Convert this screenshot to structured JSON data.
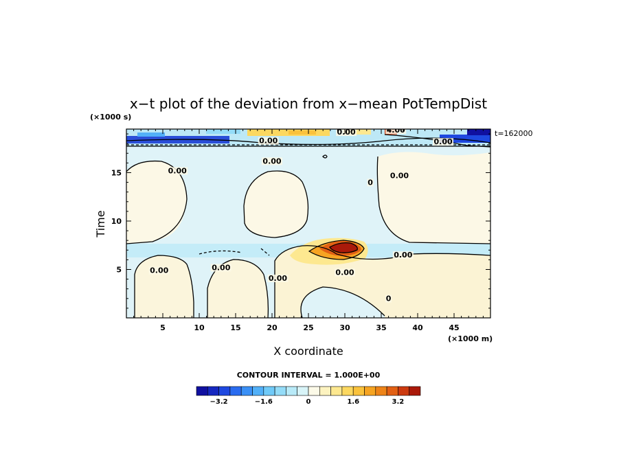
{
  "chart_data": {
    "type": "heatmap",
    "title": "x−t plot of the deviation from x−mean PotTempDist",
    "xlabel": "X coordinate",
    "ylabel": "Time",
    "x_unit": "(×1000 m)",
    "y_unit": "(×1000 s)",
    "time_stamp": "t=162000",
    "xlim": [
      0,
      50
    ],
    "ylim": [
      0,
      19.5
    ],
    "x_ticks": [
      5,
      10,
      15,
      20,
      25,
      30,
      35,
      40,
      45
    ],
    "x_tick_labels": [
      "5",
      "10",
      "15",
      "20",
      "25",
      "30",
      "35",
      "40",
      "45"
    ],
    "y_ticks": [
      5,
      10,
      15
    ],
    "y_tick_labels": [
      "5",
      "10",
      "15"
    ],
    "contour_interval_label": "CONTOUR INTERVAL = 1.000E+00",
    "contour_labels": [
      {
        "text": "0.00",
        "x": 7,
        "y": 15.0
      },
      {
        "text": "0.00",
        "x": 20.0,
        "y": 16.0
      },
      {
        "text": "0.00",
        "x": 37.5,
        "y": 14.5
      },
      {
        "text": "0",
        "x": 33.5,
        "y": 13.8
      },
      {
        "text": "0.00",
        "x": 19.5,
        "y": 18.1
      },
      {
        "text": "0.00",
        "x": 43.5,
        "y": 18.0
      },
      {
        "text": "0.00",
        "x": 30.2,
        "y": 19.0
      },
      {
        "text": "4.00",
        "x": 37.0,
        "y": 19.2
      },
      {
        "text": "0.00",
        "x": 4.5,
        "y": 4.7
      },
      {
        "text": "0.00",
        "x": 13.0,
        "y": 5.0
      },
      {
        "text": "0.00",
        "x": 20.8,
        "y": 3.9
      },
      {
        "text": "0.00",
        "x": 30.0,
        "y": 4.5
      },
      {
        "text": "0.00",
        "x": 38.0,
        "y": 6.3
      },
      {
        "text": "0",
        "x": 36.0,
        "y": 1.8
      }
    ],
    "colorbar": {
      "levels": [
        -4.0,
        -3.6,
        -3.2,
        -2.8,
        -2.4,
        -2.0,
        -1.6,
        -1.2,
        -0.8,
        -0.4,
        0,
        0.4,
        0.8,
        1.2,
        1.6,
        2.0,
        2.4,
        2.8,
        3.2,
        3.6,
        4.0
      ],
      "tick_values": [
        -3.2,
        -1.6,
        0,
        1.6,
        3.2
      ],
      "tick_labels": [
        "−3.2",
        "−1.6",
        "0",
        "1.6",
        "3.2"
      ],
      "colors": [
        "#1010a0",
        "#1628c0",
        "#1e48e0",
        "#2a6cf0",
        "#3a90f6",
        "#52b0f8",
        "#70caf8",
        "#94dcf8",
        "#b8eaf8",
        "#d8f4f8",
        "#fcfae8",
        "#fdf3c0",
        "#fde890",
        "#fcd860",
        "#fac23c",
        "#f6a422",
        "#ee8418",
        "#e26014",
        "#cc3a10",
        "#aa1a0a"
      ]
    },
    "regions": [
      {
        "name": "lower-band",
        "t_range": [
          0,
          7.7
        ],
        "character": "weak mixed anomalies, light blue and light yellow"
      },
      {
        "name": "plume",
        "x_range": [
          27,
          33
        ],
        "t_range": [
          6.2,
          8.3
        ],
        "peak": 4.0
      },
      {
        "name": "quiet-middle",
        "t_range": [
          7.7,
          18.5
        ],
        "character": "light blue background with cream cells near 0 to +0.4"
      },
      {
        "name": "upper-band",
        "t_range": [
          18.5,
          19.5
        ],
        "character": "strong alternating anomalies −3.6 to +4"
      }
    ]
  }
}
